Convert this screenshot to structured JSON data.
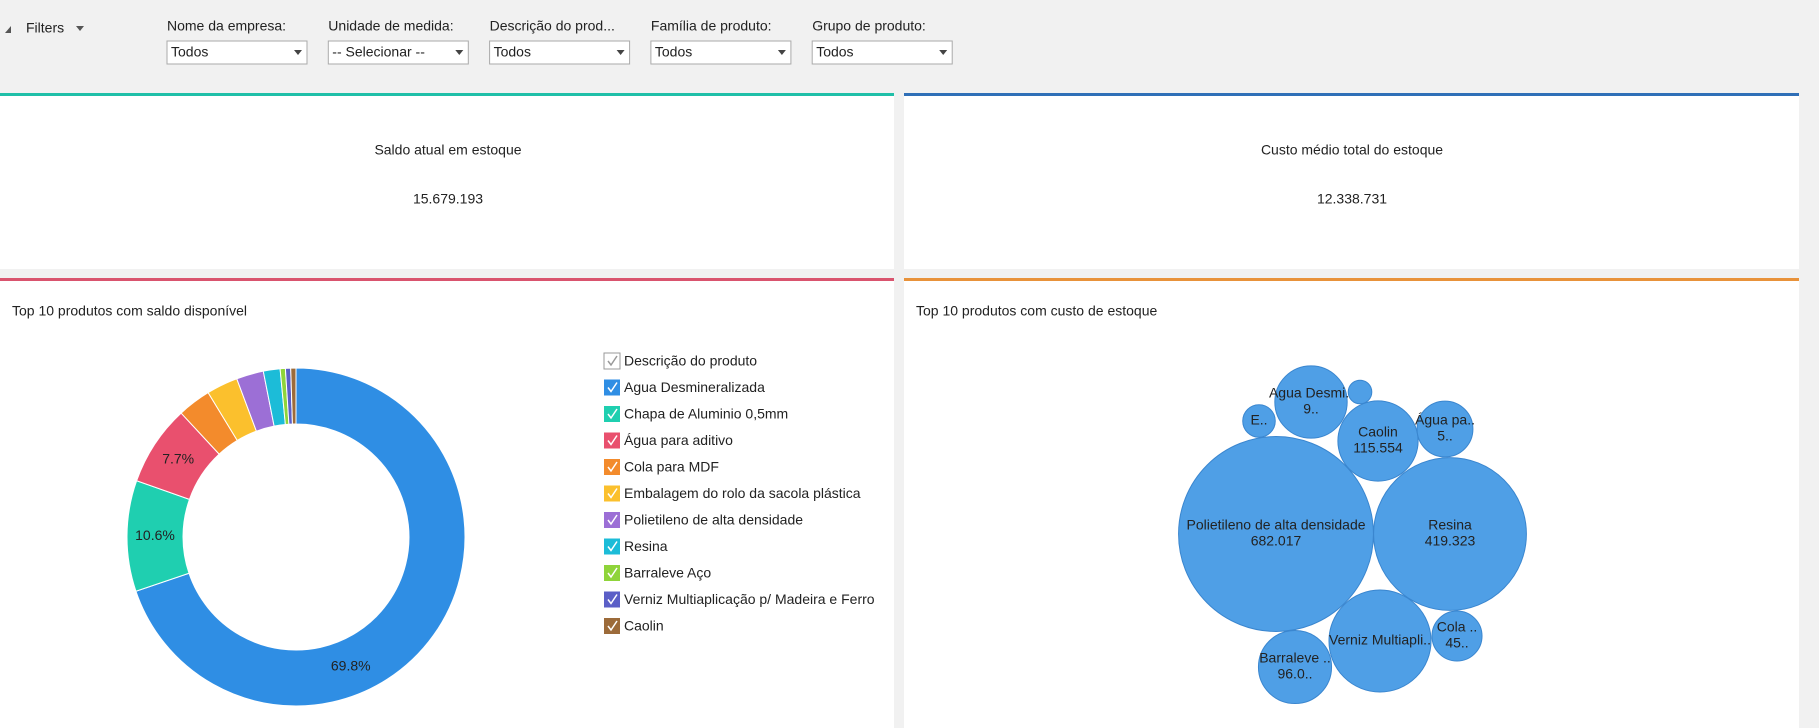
{
  "filters": {
    "toggle": "Filters",
    "items": [
      {
        "label": "Nome da empresa:",
        "value": "Todos"
      },
      {
        "label": "Unidade de medida:",
        "value": "-- Selecionar --"
      },
      {
        "label": "Descrição do prod...",
        "value": "Todos"
      },
      {
        "label": "Família de produto:",
        "value": "Todos"
      },
      {
        "label": "Grupo de produto:",
        "value": "Todos"
      }
    ]
  },
  "kpis": [
    {
      "title": "Saldo atual em estoque",
      "value": "15.679.193"
    },
    {
      "title": "Custo médio total do estoque",
      "value": "12.338.731"
    }
  ],
  "chart_data": [
    {
      "type": "donut",
      "title": "Top 10 produtos com saldo disponível",
      "legend_title": "Descrição do produto",
      "categories": [
        "Agua Desmineralizada",
        "Chapa de Aluminio 0,5mm",
        "Água para aditivo",
        "Cola para MDF",
        "Embalagem do rolo da sacola plástica",
        "Polietileno de alta densidade",
        "Resina",
        "Barraleve Aço",
        "Verniz Multiaplicação p/ Madeira e Ferro",
        "Caolin"
      ],
      "values": [
        69.8,
        10.6,
        7.7,
        3.2,
        3.0,
        2.6,
        1.6,
        0.5,
        0.5,
        0.5
      ],
      "value_labels": [
        "69.8%",
        "10.6%",
        "7.7%",
        null,
        null,
        null,
        null,
        null,
        null,
        null
      ],
      "colors": [
        "#2f8ee4",
        "#1fcfb0",
        "#e9506e",
        "#f38b2c",
        "#fbc02d",
        "#9c6fd6",
        "#1cbcd8",
        "#8fd43a",
        "#5b5fc7",
        "#9c6b3a"
      ]
    },
    {
      "type": "bubble",
      "title": "Top 10 produtos com custo de estoque",
      "categories": [
        "Polietileno de alta densidade",
        "Resina",
        "Verniz Multiapli..",
        "Barraleve ..",
        "Cola ..",
        "Caolin",
        "Agua Desmi..",
        "Água pa..",
        "E..",
        null
      ],
      "values": [
        682017,
        419323,
        187000,
        96000,
        45000,
        115554,
        94000,
        56000,
        19000,
        10000
      ],
      "value_labels": [
        "682.017",
        "419.323",
        null,
        "96.0..",
        "45..",
        "115.554",
        "9..",
        "5..",
        null,
        null
      ],
      "color": "#4f9fe6"
    }
  ]
}
